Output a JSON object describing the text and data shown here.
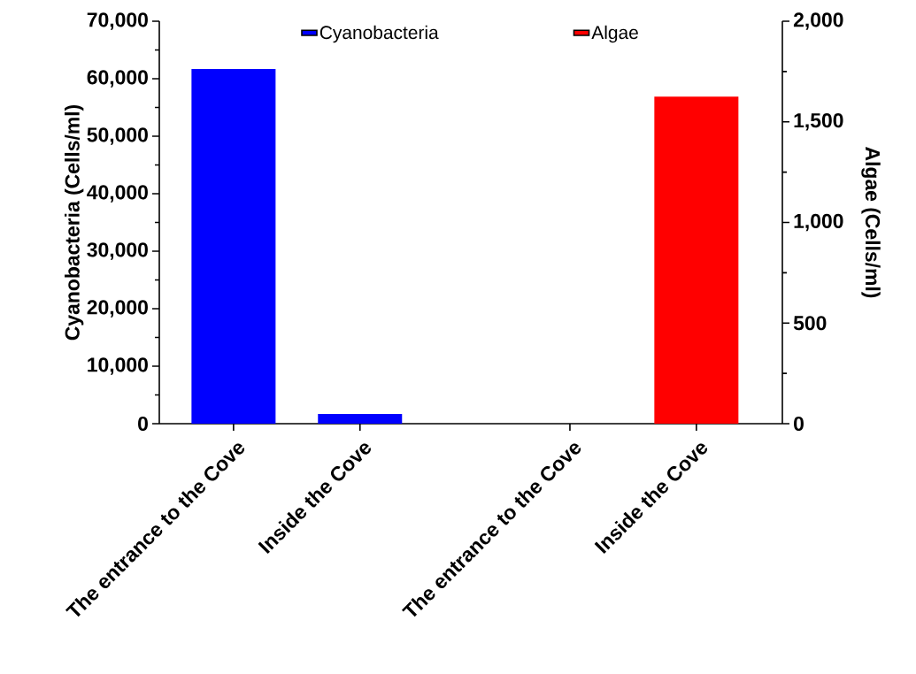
{
  "chart_data": {
    "type": "bar",
    "categories": [
      "The entrance to the Cove",
      "Inside the Cove",
      "The entrance to the Cove",
      "Inside the Cove"
    ],
    "series": [
      {
        "name": "Cyanobacteria",
        "color": "#0000ff",
        "values": [
          61700,
          1700,
          null,
          null
        ]
      },
      {
        "name": "Algae",
        "color": "#ff0000",
        "axis": "y2",
        "values": [
          null,
          null,
          0,
          1625
        ]
      }
    ],
    "ylabel": "Cyanobacteria (Cells/ml)",
    "y2label": "Algae (Cells/ml)",
    "ylim": [
      0,
      70000
    ],
    "yticks": [
      0,
      {
        "value": 10000,
        "label": "10,000"
      },
      {
        "value": 20000,
        "label": "20,000"
      },
      {
        "value": 30000,
        "label": "30,000"
      },
      {
        "value": 40000,
        "label": "40,000"
      },
      {
        "value": 50000,
        "label": "50,000"
      },
      {
        "value": 60000,
        "label": "60,000"
      },
      {
        "value": 70000,
        "label": "70,000"
      }
    ],
    "y2lim": [
      0,
      2000
    ],
    "y2ticks": [
      0,
      500,
      {
        "value": 1000,
        "label": "1,000"
      },
      {
        "value": 1500,
        "label": "1,500"
      },
      {
        "value": 2000,
        "label": "2,000"
      }
    ],
    "legend": "top",
    "grid": false
  }
}
